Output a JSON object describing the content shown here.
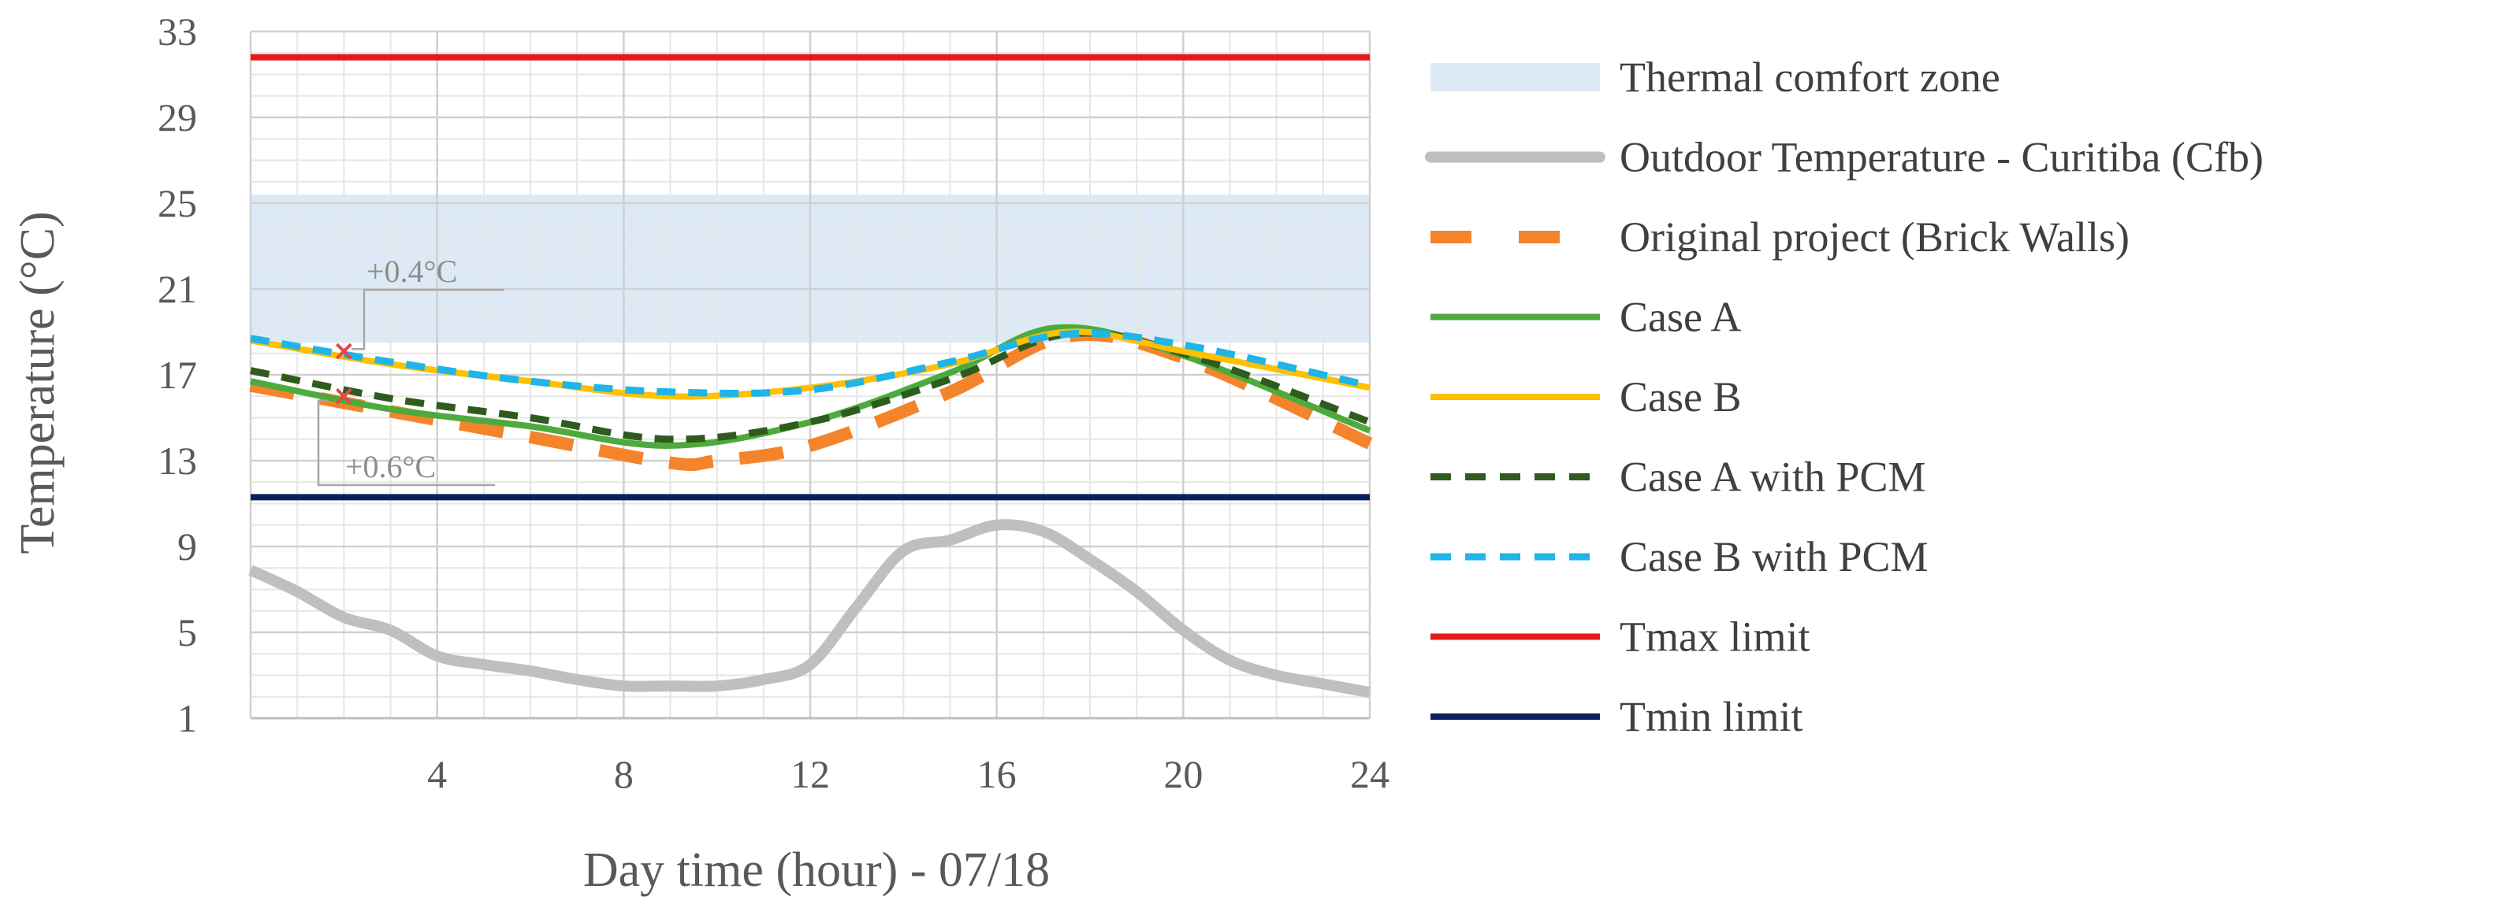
{
  "chart_data": {
    "type": "line",
    "xlabel": "Day time (hour)  - 07/18",
    "ylabel": "Temperature (°C)",
    "xlim": [
      0,
      24
    ],
    "ylim": [
      1,
      33
    ],
    "xticks": [
      4,
      8,
      12,
      16,
      20,
      24
    ],
    "yticks": [
      1,
      5,
      9,
      13,
      17,
      21,
      25,
      29,
      33
    ],
    "grid": true,
    "legend_position": "right",
    "comfort_zone": {
      "name": "Thermal comfort zone",
      "y_range": [
        18.5,
        25.4
      ],
      "color": "#ddeaf6"
    },
    "series": [
      {
        "name": "Outdoor Temperature - Curitiba (Cfb)",
        "color": "#bfbfbf",
        "style": "solid-thick",
        "x": [
          0,
          1,
          2,
          3,
          4,
          5,
          6,
          7,
          8,
          9,
          10,
          11,
          12,
          13,
          14,
          15,
          16,
          17,
          18,
          19,
          20,
          21,
          22,
          23,
          24
        ],
        "y": [
          7.9,
          6.9,
          5.7,
          5.1,
          3.9,
          3.5,
          3.2,
          2.8,
          2.5,
          2.5,
          2.5,
          2.8,
          3.5,
          6.2,
          8.8,
          9.3,
          10.0,
          9.7,
          8.4,
          6.9,
          5.1,
          3.7,
          3.0,
          2.6,
          2.2
        ]
      },
      {
        "name": "Original project (Brick Walls)",
        "color": "#f4842c",
        "style": "long-dash",
        "x": [
          0,
          3,
          6,
          9,
          10,
          12,
          15,
          17.5,
          20,
          24
        ],
        "y": [
          16.5,
          15.3,
          14.1,
          12.9,
          13.0,
          13.7,
          16.2,
          18.8,
          17.8,
          13.8
        ]
      },
      {
        "name": "Case A",
        "color": "#4daa3c",
        "style": "solid",
        "x": [
          0,
          3,
          6,
          9,
          12,
          15,
          17.3,
          20,
          24
        ],
        "y": [
          16.7,
          15.4,
          14.6,
          13.7,
          14.8,
          17.1,
          19.2,
          17.9,
          14.4
        ]
      },
      {
        "name": "Case B",
        "color": "#ffc000",
        "style": "solid",
        "x": [
          0,
          3,
          6,
          9,
          12,
          15,
          17.5,
          20,
          24
        ],
        "y": [
          18.6,
          17.5,
          16.7,
          16.0,
          16.4,
          17.5,
          19.0,
          18.1,
          16.4
        ]
      },
      {
        "name": "Case A with PCM",
        "color": "#2f5c1e",
        "style": "short-dash",
        "x": [
          0,
          3,
          6,
          9,
          12,
          15,
          17.5,
          20,
          24
        ],
        "y": [
          17.2,
          15.9,
          15.0,
          14.0,
          14.8,
          16.8,
          18.9,
          18.0,
          14.8
        ]
      },
      {
        "name": "Case B with PCM",
        "color": "#1fb5e8",
        "style": "short-dash",
        "x": [
          0,
          3,
          6,
          9,
          12,
          15,
          17.5,
          20,
          24
        ],
        "y": [
          18.7,
          17.6,
          16.7,
          16.2,
          16.3,
          17.6,
          18.9,
          18.4,
          16.5
        ]
      },
      {
        "name": "Tmax limit",
        "color": "#e31a1c",
        "style": "solid",
        "x": [
          0,
          24
        ],
        "y": [
          31.8,
          31.8
        ]
      },
      {
        "name": "Tmin limit",
        "color": "#0b1f5e",
        "style": "solid",
        "x": [
          0,
          24
        ],
        "y": [
          11.3,
          11.3
        ]
      }
    ],
    "annotations": [
      {
        "text": "+0.4°C",
        "x": 2,
        "y": 18.2
      },
      {
        "text": "+0.6°C",
        "x": 1.5,
        "y": 15.8
      }
    ]
  }
}
